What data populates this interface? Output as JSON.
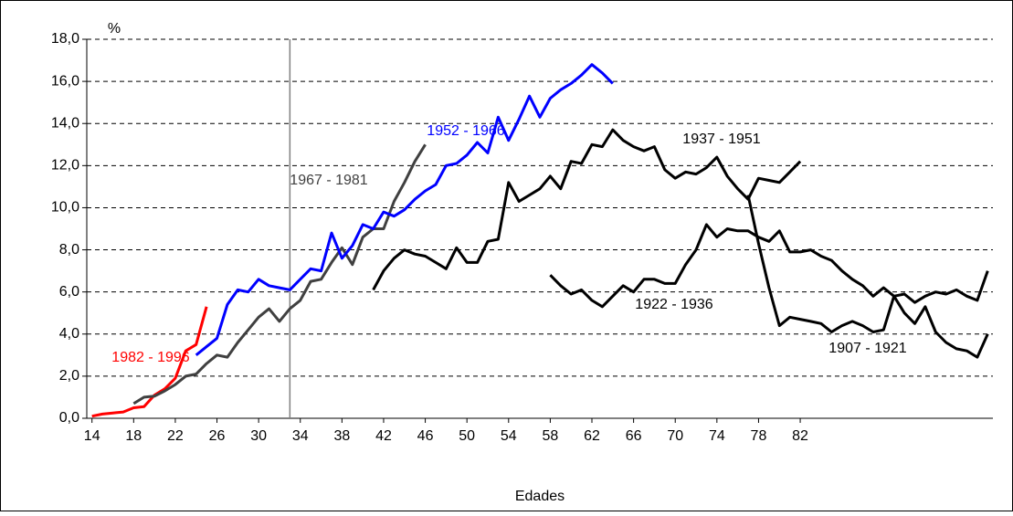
{
  "chart_data": {
    "type": "line",
    "y_unit_label": "%",
    "x_label": "Edades",
    "xlim": [
      13.5,
      100.5
    ],
    "xticks": [
      14,
      18,
      22,
      26,
      30,
      34,
      38,
      42,
      46,
      50,
      54,
      58,
      62,
      66,
      70,
      74,
      78,
      82
    ],
    "ylim": [
      0,
      18
    ],
    "yticks": [
      {
        "value": 0,
        "label": "0,0"
      },
      {
        "value": 2,
        "label": "2,0"
      },
      {
        "value": 4,
        "label": "4,0"
      },
      {
        "value": 6,
        "label": "6,0"
      },
      {
        "value": 8,
        "label": "8,0"
      },
      {
        "value": 10,
        "label": "10,0"
      },
      {
        "value": 12,
        "label": "12,0"
      },
      {
        "value": 14,
        "label": "14,0"
      },
      {
        "value": 16,
        "label": "16,0"
      },
      {
        "value": 18,
        "label": "18,0"
      }
    ],
    "grid": true,
    "reference_line_x": 33,
    "series": [
      {
        "name": "1982 - 1996",
        "color": "#ff0000",
        "start": 14,
        "values": [
          0.1,
          0.2,
          0.25,
          0.3,
          0.5,
          0.55,
          1.1,
          1.4,
          1.9,
          3.2,
          3.5,
          5.3
        ]
      },
      {
        "name": "1967 - 1981",
        "color": "#404040",
        "start": 18,
        "values": [
          0.7,
          1.0,
          1.05,
          1.3,
          1.6,
          2.0,
          2.1,
          2.6,
          3.0,
          2.9,
          3.6,
          4.2,
          4.8,
          5.2,
          4.6,
          5.2,
          5.6,
          6.5,
          6.6,
          7.4,
          8.1,
          7.3,
          8.6,
          9.0,
          9.0,
          10.3,
          11.2,
          12.2,
          13.0
        ]
      },
      {
        "name": "1952 - 1966",
        "color": "#0000ff",
        "start": 24,
        "values": [
          3.0,
          3.4,
          3.8,
          5.4,
          6.1,
          6.0,
          6.6,
          6.3,
          6.2,
          6.1,
          6.6,
          7.1,
          7.0,
          8.8,
          7.6,
          8.2,
          9.2,
          9.0,
          9.8,
          9.6,
          9.9,
          10.4,
          10.8,
          11.1,
          12.0,
          12.1,
          12.5,
          13.1,
          12.6,
          14.3,
          13.2,
          14.2,
          15.3,
          14.3,
          15.2,
          15.6,
          15.9,
          16.3,
          16.8,
          16.4,
          15.9
        ]
      },
      {
        "name": "1937 - 1951",
        "color": "#000000",
        "start": 41,
        "values": [
          6.1,
          7.0,
          7.6,
          8.0,
          7.8,
          7.7,
          7.4,
          7.1,
          8.1,
          7.4,
          7.4,
          8.4,
          8.5,
          11.2,
          10.3,
          10.6,
          10.9,
          11.5,
          10.9,
          12.2,
          12.1,
          13.0,
          12.9,
          13.7,
          13.2,
          12.9,
          12.7,
          12.9,
          11.8,
          11.4,
          11.7,
          11.6,
          11.9,
          12.4,
          11.5,
          10.9,
          10.4,
          11.4,
          11.3,
          11.2,
          11.7,
          12.2
        ]
      },
      {
        "name": "1922 - 1936",
        "color": "#000000",
        "start": 58,
        "values": [
          6.8,
          6.3,
          5.9,
          6.1,
          5.6,
          5.3,
          5.8,
          6.3,
          6.0,
          6.6,
          6.6,
          6.4,
          6.4,
          7.3,
          8.0,
          9.2,
          8.6,
          9.0,
          8.9,
          8.9,
          8.6,
          8.4,
          8.9,
          7.9,
          7.9,
          8.0,
          7.7,
          7.5,
          7.0,
          6.6,
          6.3,
          5.8,
          6.2,
          5.8,
          5.9,
          5.5,
          5.8,
          6.0,
          5.9,
          6.1,
          5.8,
          5.6,
          7.0
        ]
      },
      {
        "name": "1907 - 1921",
        "color": "#000000",
        "start": 77,
        "values": [
          10.6,
          8.3,
          6.2,
          4.4,
          4.8,
          4.7,
          4.6,
          4.5,
          4.1,
          4.4,
          4.6,
          4.4,
          4.1,
          4.2,
          5.8,
          5.0,
          4.5,
          5.3,
          4.1,
          3.6,
          3.3,
          3.2,
          2.9,
          4.0
        ]
      }
    ]
  }
}
